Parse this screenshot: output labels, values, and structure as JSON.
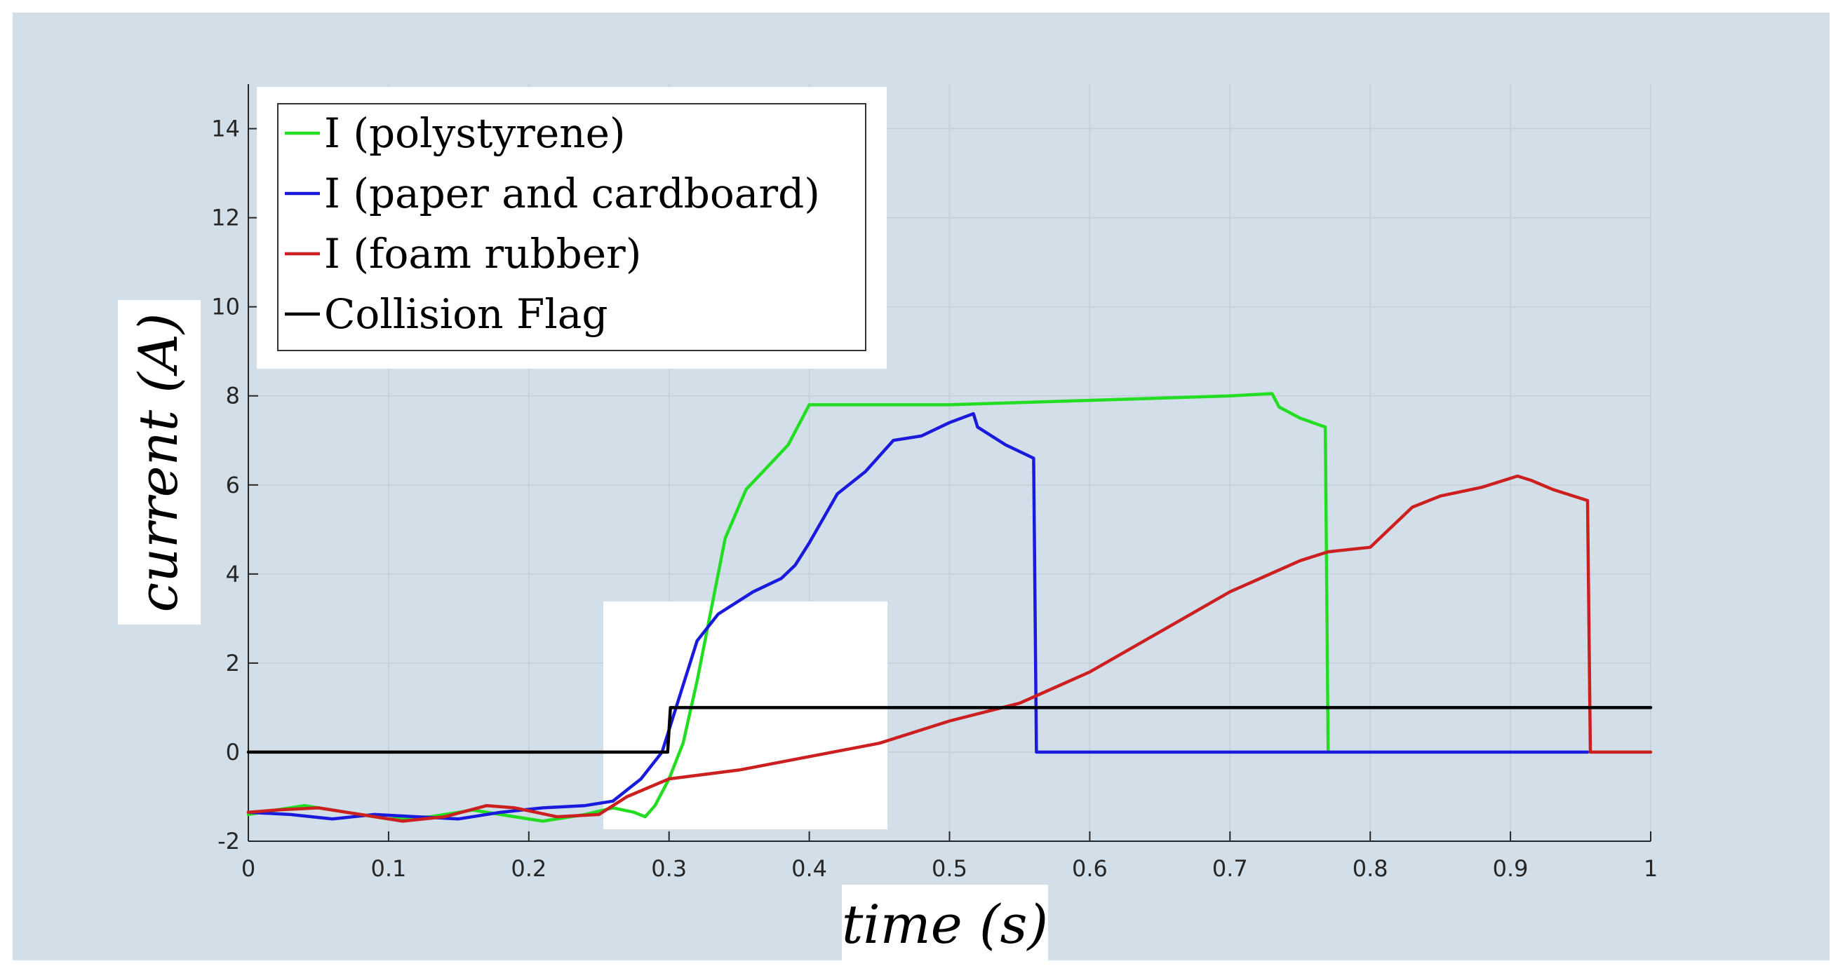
{
  "chart_data": {
    "type": "line",
    "xlabel": "time (s)",
    "ylabel": "current (A)",
    "xlim": [
      0,
      1
    ],
    "ylim": [
      -2,
      15
    ],
    "xticks": [
      "0",
      "0.1",
      "0.2",
      "0.3",
      "0.4",
      "0.5",
      "0.6",
      "0.7",
      "0.8",
      "0.9",
      "1"
    ],
    "yticks": [
      "-2",
      "0",
      "2",
      "4",
      "6",
      "8",
      "10",
      "12",
      "14"
    ],
    "grid": true,
    "legend_position": "top-left",
    "series": [
      {
        "name": "I (polystyrene)",
        "color": "#22dd22",
        "points": [
          [
            0,
            -1.4
          ],
          [
            0.02,
            -1.3
          ],
          [
            0.04,
            -1.2
          ],
          [
            0.07,
            -1.35
          ],
          [
            0.1,
            -1.5
          ],
          [
            0.13,
            -1.45
          ],
          [
            0.16,
            -1.3
          ],
          [
            0.19,
            -1.45
          ],
          [
            0.21,
            -1.55
          ],
          [
            0.24,
            -1.4
          ],
          [
            0.26,
            -1.25
          ],
          [
            0.275,
            -1.35
          ],
          [
            0.283,
            -1.45
          ],
          [
            0.29,
            -1.2
          ],
          [
            0.3,
            -0.6
          ],
          [
            0.31,
            0.2
          ],
          [
            0.32,
            1.6
          ],
          [
            0.33,
            3.2
          ],
          [
            0.34,
            4.8
          ],
          [
            0.355,
            5.9
          ],
          [
            0.37,
            6.4
          ],
          [
            0.385,
            6.9
          ],
          [
            0.4,
            7.8
          ],
          [
            0.5,
            7.8
          ],
          [
            0.6,
            7.9
          ],
          [
            0.7,
            8.0
          ],
          [
            0.73,
            8.05
          ],
          [
            0.735,
            7.75
          ],
          [
            0.75,
            7.5
          ],
          [
            0.768,
            7.3
          ],
          [
            0.77,
            0.05
          ]
        ]
      },
      {
        "name": "I (paper and cardboard)",
        "color": "#1a1adc",
        "points": [
          [
            0,
            -1.35
          ],
          [
            0.03,
            -1.4
          ],
          [
            0.06,
            -1.5
          ],
          [
            0.09,
            -1.4
          ],
          [
            0.12,
            -1.45
          ],
          [
            0.15,
            -1.5
          ],
          [
            0.18,
            -1.35
          ],
          [
            0.21,
            -1.25
          ],
          [
            0.24,
            -1.2
          ],
          [
            0.26,
            -1.1
          ],
          [
            0.28,
            -0.6
          ],
          [
            0.295,
            0.0
          ],
          [
            0.31,
            1.5
          ],
          [
            0.32,
            2.5
          ],
          [
            0.335,
            3.1
          ],
          [
            0.36,
            3.6
          ],
          [
            0.38,
            3.9
          ],
          [
            0.39,
            4.2
          ],
          [
            0.4,
            4.7
          ],
          [
            0.42,
            5.8
          ],
          [
            0.44,
            6.3
          ],
          [
            0.46,
            7.0
          ],
          [
            0.48,
            7.1
          ],
          [
            0.5,
            7.4
          ],
          [
            0.517,
            7.6
          ],
          [
            0.52,
            7.3
          ],
          [
            0.54,
            6.9
          ],
          [
            0.56,
            6.6
          ],
          [
            0.562,
            0.0
          ],
          [
            0.6,
            0.0
          ],
          [
            0.7,
            0.0
          ],
          [
            0.8,
            0.0
          ],
          [
            0.9,
            0.0
          ],
          [
            0.955,
            0.0
          ]
        ]
      },
      {
        "name": "I (foam rubber)",
        "color": "#cc1f1f",
        "points": [
          [
            0,
            -1.35
          ],
          [
            0.02,
            -1.3
          ],
          [
            0.05,
            -1.25
          ],
          [
            0.08,
            -1.4
          ],
          [
            0.11,
            -1.55
          ],
          [
            0.14,
            -1.45
          ],
          [
            0.17,
            -1.2
          ],
          [
            0.19,
            -1.25
          ],
          [
            0.22,
            -1.45
          ],
          [
            0.25,
            -1.4
          ],
          [
            0.27,
            -1.0
          ],
          [
            0.3,
            -0.6
          ],
          [
            0.35,
            -0.4
          ],
          [
            0.4,
            -0.1
          ],
          [
            0.45,
            0.2
          ],
          [
            0.5,
            0.7
          ],
          [
            0.55,
            1.1
          ],
          [
            0.6,
            1.8
          ],
          [
            0.65,
            2.7
          ],
          [
            0.7,
            3.6
          ],
          [
            0.75,
            4.3
          ],
          [
            0.77,
            4.5
          ],
          [
            0.8,
            4.6
          ],
          [
            0.83,
            5.5
          ],
          [
            0.85,
            5.75
          ],
          [
            0.88,
            5.95
          ],
          [
            0.905,
            6.2
          ],
          [
            0.915,
            6.1
          ],
          [
            0.93,
            5.9
          ],
          [
            0.955,
            5.65
          ],
          [
            0.957,
            0.0
          ],
          [
            1.0,
            0.0
          ]
        ]
      },
      {
        "name": "Collision Flag",
        "color": "#000000",
        "points": [
          [
            0,
            0
          ],
          [
            0.299,
            0
          ],
          [
            0.301,
            1
          ],
          [
            1,
            1
          ]
        ]
      }
    ]
  }
}
